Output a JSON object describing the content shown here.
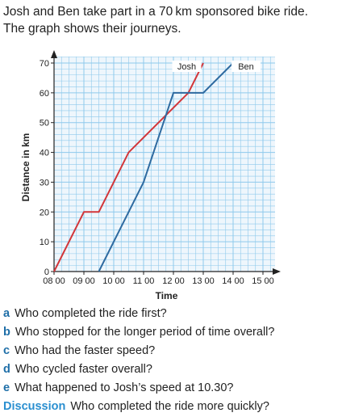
{
  "intro": {
    "line1": "Josh and Ben take part in a 70 km sponsored bike ride.",
    "line2": "The graph shows their journeys."
  },
  "chart_data": {
    "type": "line",
    "xlabel": "Time",
    "ylabel": "Distance in km",
    "x_ticks": [
      "08 00",
      "09 00",
      "10 00",
      "11 00",
      "12 00",
      "13 00",
      "14 00",
      "15 00"
    ],
    "y_ticks": [
      0,
      10,
      20,
      30,
      40,
      50,
      60,
      70
    ],
    "xlim": [
      "08:00",
      "15:00"
    ],
    "ylim": [
      0,
      70
    ],
    "grid": true,
    "series": [
      {
        "name": "Josh",
        "color": "#d2363a",
        "points": [
          [
            "08:00",
            0
          ],
          [
            "09:00",
            20
          ],
          [
            "09:30",
            20
          ],
          [
            "10:30",
            40
          ],
          [
            "12:30",
            60
          ],
          [
            "13:00",
            70
          ]
        ]
      },
      {
        "name": "Ben",
        "color": "#2e6aa0",
        "points": [
          [
            "09:30",
            0
          ],
          [
            "11:00",
            30
          ],
          [
            "12:00",
            60
          ],
          [
            "13:00",
            60
          ],
          [
            "14:00",
            70
          ]
        ]
      }
    ]
  },
  "questions": [
    {
      "letter": "a",
      "text": "Who completed the ride first?"
    },
    {
      "letter": "b",
      "text": "Who stopped for the longer period of time overall?"
    },
    {
      "letter": "c",
      "text": "Who had the faster speed?"
    },
    {
      "letter": "d",
      "text": "Who cycled faster overall?"
    },
    {
      "letter": "e",
      "text": "What happened to Josh’s speed at 10.30?"
    }
  ],
  "discussion": {
    "label": "Discussion",
    "text": "Who completed the ride more quickly?"
  }
}
